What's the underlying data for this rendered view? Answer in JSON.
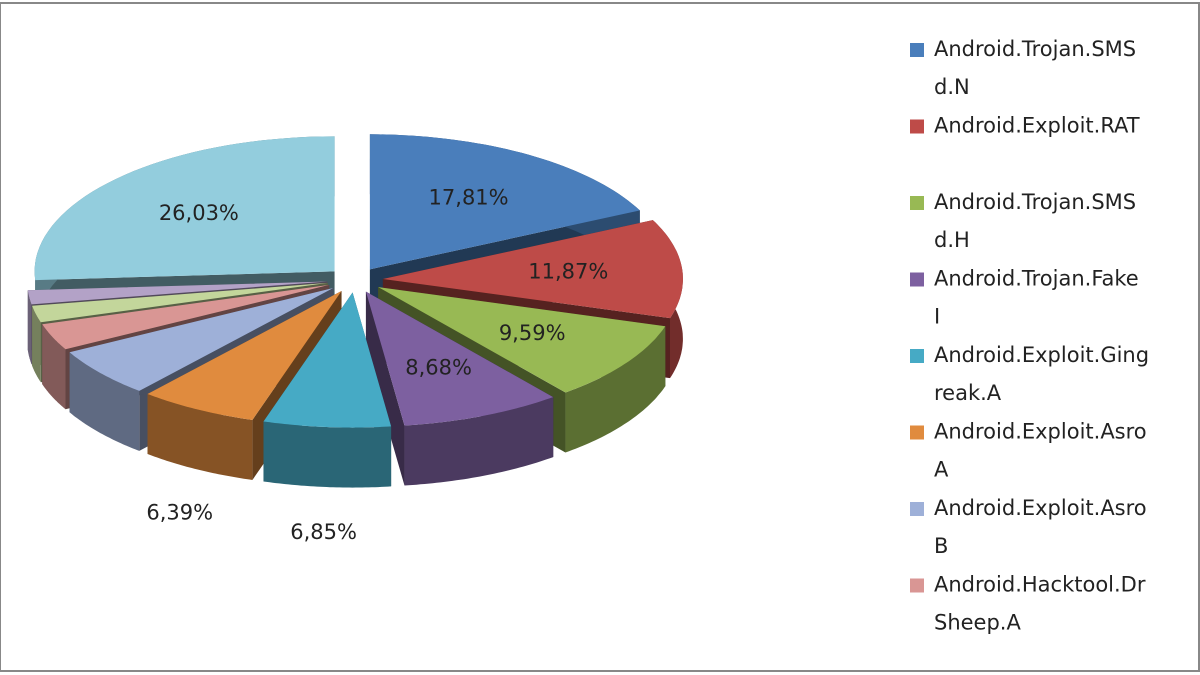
{
  "chart_data": {
    "type": "pie",
    "categories": [
      [
        "Android.Trojan.SMS",
        "d.N"
      ],
      [
        "Android.Exploit.RAT"
      ],
      [
        "Android.Trojan.SMS",
        "d.H"
      ],
      [
        "Android.Trojan.Fake",
        "I"
      ],
      [
        "Android.Exploit.Ging",
        "reak.A"
      ],
      [
        "Android.Exploit.Asro",
        "A"
      ],
      [
        "Android.Exploit.Asro",
        "B"
      ],
      [
        "Android.Hacktool.Dr",
        "Sheep.A"
      ],
      null,
      null,
      null
    ],
    "values": [
      17.81,
      11.87,
      9.59,
      8.68,
      6.85,
      6.39,
      5.9,
      3.2,
      2.0,
      1.68,
      26.03
    ],
    "value_labels": [
      "17,81%",
      "11,87%",
      "9,59%",
      "8,68%",
      "6,85%",
      "6,39%",
      null,
      null,
      null,
      null,
      "26,03%"
    ],
    "colors": [
      "#4a7ebb",
      "#be4b48",
      "#98b954",
      "#7d60a0",
      "#46aac5",
      "#e08b3e",
      "#9eb0d8",
      "#d99694",
      "#c3d69b",
      "#b3a2c7",
      "#93cddd"
    ],
    "legend": "right"
  }
}
